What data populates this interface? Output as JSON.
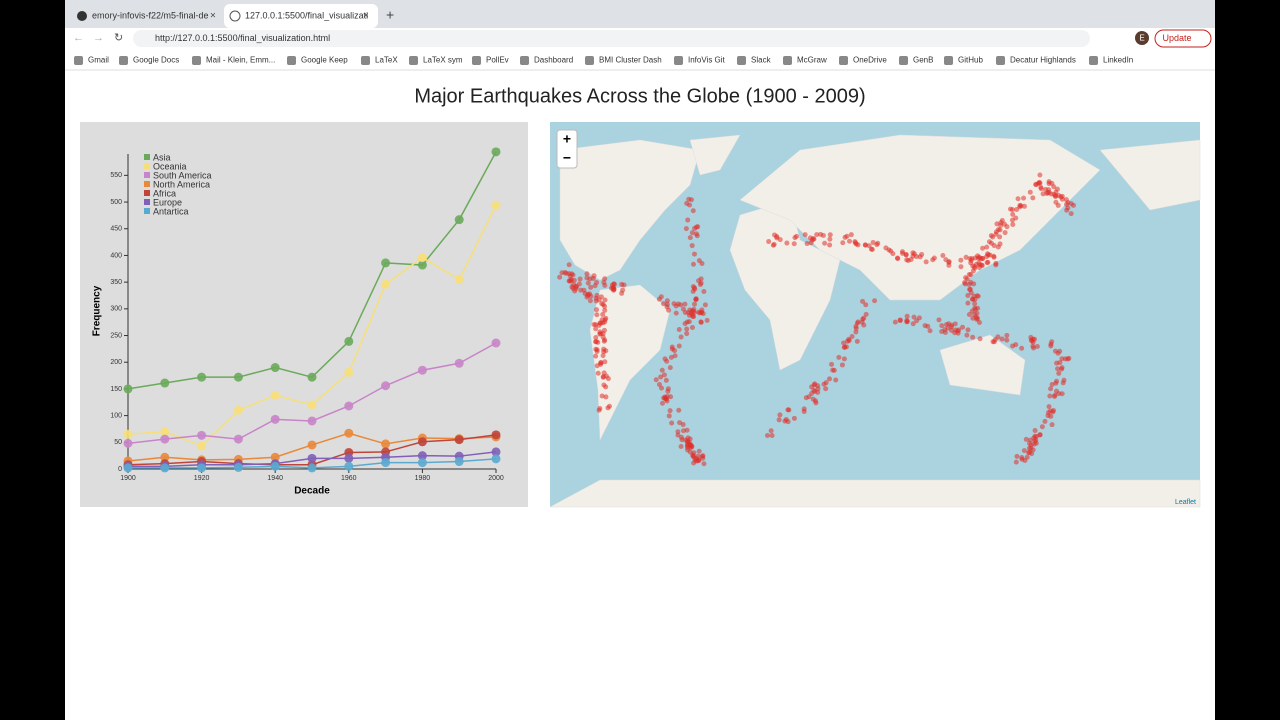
{
  "browser": {
    "tabs": [
      "emory-infovis-f22/m5-final-de",
      "127.0.0.1:5500/final_visualizati"
    ],
    "url": "http://127.0.0.1:5500/final_visualization.html",
    "update_button": "Update",
    "profile": "E",
    "bookmarks": [
      "Gmail",
      "Google Docs",
      "Mail - Klein, Emm...",
      "Google Keep",
      "LaTeX",
      "LaTeX sym",
      "PollEv",
      "Dashboard",
      "BMI Cluster Dash",
      "InfoVis Git",
      "Slack",
      "McGraw",
      "OneDrive",
      "GenB",
      "GitHub",
      "Decatur Highlands",
      "LinkedIn"
    ]
  },
  "page": {
    "title": "Major Earthquakes Across the Globe (1900 - 2009)"
  },
  "map": {
    "zoom_in": "+",
    "zoom_out": "−",
    "attribution": "Leaflet"
  },
  "chart_data": {
    "type": "line",
    "x_label": "Decade",
    "y_label": "Frequency",
    "x": [
      1900,
      1910,
      1920,
      1930,
      1940,
      1950,
      1960,
      1970,
      1980,
      1990,
      2000
    ],
    "series": [
      {
        "name": "Asia",
        "color": "#6aaa5a",
        "values": [
          150,
          161,
          172,
          172,
          190,
          172,
          239,
          386,
          382,
          467,
          594
        ]
      },
      {
        "name": "Oceania",
        "color": "#f7df78",
        "values": [
          65,
          70,
          43,
          110,
          138,
          120,
          181,
          346,
          396,
          355,
          494
        ]
      },
      {
        "name": "South America",
        "color": "#c884c8",
        "values": [
          48,
          56,
          63,
          56,
          93,
          90,
          118,
          156,
          185,
          198,
          236
        ]
      },
      {
        "name": "North America",
        "color": "#e8883a",
        "values": [
          15,
          22,
          17,
          18,
          22,
          45,
          67,
          47,
          58,
          57,
          60
        ]
      },
      {
        "name": "Africa",
        "color": "#c0443a",
        "values": [
          8,
          10,
          14,
          10,
          8,
          8,
          31,
          32,
          51,
          55,
          64
        ]
      },
      {
        "name": "Europe",
        "color": "#8060b8",
        "values": [
          5,
          5,
          8,
          8,
          10,
          20,
          20,
          22,
          25,
          24,
          32
        ]
      },
      {
        "name": "Antartica",
        "color": "#5aaad0",
        "values": [
          2,
          2,
          2,
          3,
          5,
          2,
          5,
          12,
          12,
          14,
          19
        ]
      }
    ],
    "xlim": [
      1900,
      2000
    ],
    "xticks": [
      1900,
      1920,
      1940,
      1960,
      1980,
      2000
    ],
    "ylim": [
      0,
      590
    ],
    "yticks": [
      0,
      50,
      100,
      150,
      200,
      250,
      300,
      350,
      400,
      450,
      500,
      550
    ],
    "legend": "top-left"
  }
}
